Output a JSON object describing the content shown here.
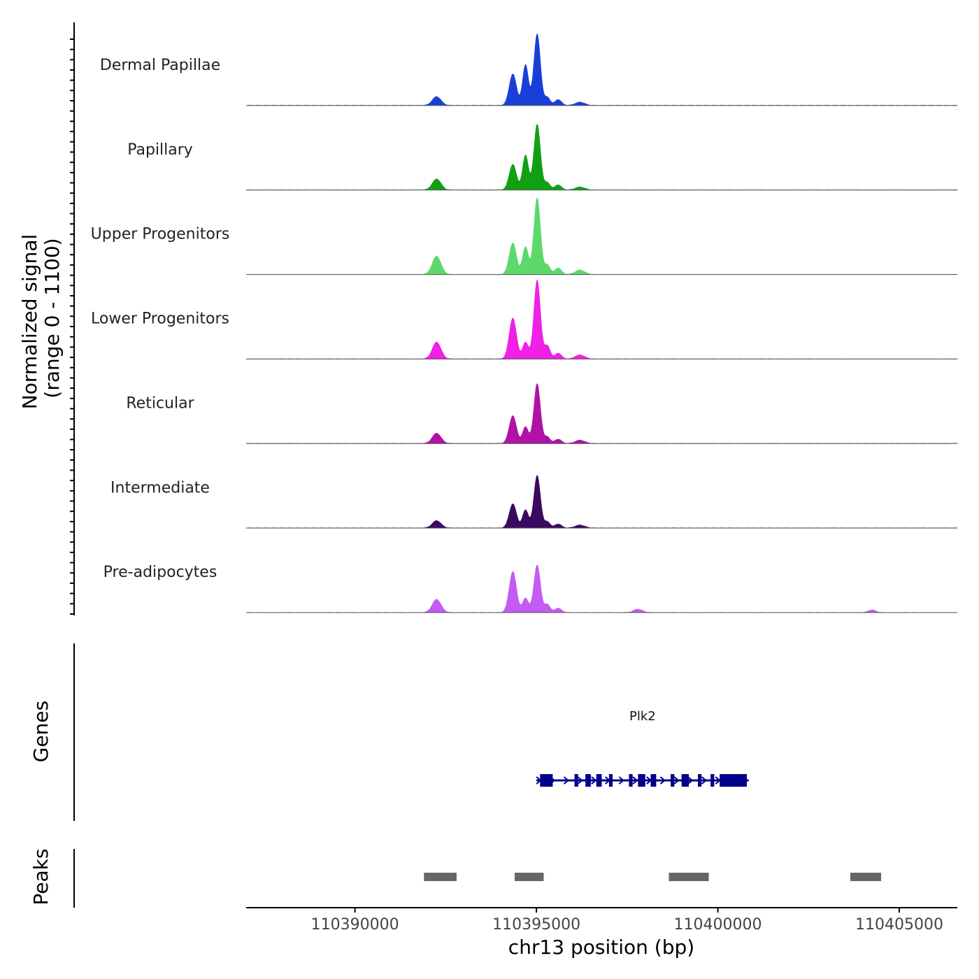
{
  "chart_data": {
    "type": "area",
    "title": "",
    "coverage": {
      "ylabel": "Normalized signal",
      "ylabel_range": "(range 0 - 1100)",
      "ylim": [
        0,
        1100
      ],
      "tracks": [
        {
          "name": "Dermal Papillae",
          "color": "#1a3fd9",
          "peaks": [
            {
              "pos": 110392250,
              "h": 120,
              "w": 120
            },
            {
              "pos": 110394350,
              "h": 430,
              "w": 100
            },
            {
              "pos": 110394700,
              "h": 560,
              "w": 80
            },
            {
              "pos": 110395020,
              "h": 980,
              "w": 90
            },
            {
              "pos": 110395300,
              "h": 110,
              "w": 80
            },
            {
              "pos": 110395600,
              "h": 80,
              "w": 90
            },
            {
              "pos": 110396200,
              "h": 45,
              "w": 130
            }
          ]
        },
        {
          "name": "Papillary",
          "color": "#11a011",
          "peaks": [
            {
              "pos": 110392250,
              "h": 150,
              "w": 120
            },
            {
              "pos": 110394350,
              "h": 350,
              "w": 100
            },
            {
              "pos": 110394700,
              "h": 480,
              "w": 80
            },
            {
              "pos": 110395020,
              "h": 900,
              "w": 90
            },
            {
              "pos": 110395300,
              "h": 100,
              "w": 80
            },
            {
              "pos": 110395600,
              "h": 70,
              "w": 90
            },
            {
              "pos": 110396200,
              "h": 40,
              "w": 130
            }
          ]
        },
        {
          "name": "Upper Progenitors",
          "color": "#5cd96a",
          "peaks": [
            {
              "pos": 110392250,
              "h": 250,
              "w": 120
            },
            {
              "pos": 110394350,
              "h": 430,
              "w": 100
            },
            {
              "pos": 110394700,
              "h": 380,
              "w": 80
            },
            {
              "pos": 110395020,
              "h": 1050,
              "w": 90
            },
            {
              "pos": 110395300,
              "h": 130,
              "w": 80
            },
            {
              "pos": 110395600,
              "h": 90,
              "w": 90
            },
            {
              "pos": 110396200,
              "h": 60,
              "w": 130
            }
          ]
        },
        {
          "name": "Lower Progenitors",
          "color": "#f020e6",
          "peaks": [
            {
              "pos": 110392250,
              "h": 230,
              "w": 120
            },
            {
              "pos": 110394350,
              "h": 560,
              "w": 100
            },
            {
              "pos": 110394700,
              "h": 230,
              "w": 80
            },
            {
              "pos": 110395020,
              "h": 1080,
              "w": 90
            },
            {
              "pos": 110395300,
              "h": 180,
              "w": 80
            },
            {
              "pos": 110395600,
              "h": 80,
              "w": 90
            },
            {
              "pos": 110396200,
              "h": 55,
              "w": 130
            }
          ]
        },
        {
          "name": "Reticular",
          "color": "#b012a8",
          "peaks": [
            {
              "pos": 110392250,
              "h": 140,
              "w": 120
            },
            {
              "pos": 110394350,
              "h": 380,
              "w": 100
            },
            {
              "pos": 110394700,
              "h": 230,
              "w": 80
            },
            {
              "pos": 110395020,
              "h": 820,
              "w": 90
            },
            {
              "pos": 110395300,
              "h": 90,
              "w": 80
            },
            {
              "pos": 110395600,
              "h": 60,
              "w": 90
            },
            {
              "pos": 110396200,
              "h": 45,
              "w": 130
            }
          ]
        },
        {
          "name": "Intermediate",
          "color": "#3a0a5e",
          "peaks": [
            {
              "pos": 110392250,
              "h": 100,
              "w": 120
            },
            {
              "pos": 110394350,
              "h": 330,
              "w": 100
            },
            {
              "pos": 110394700,
              "h": 250,
              "w": 80
            },
            {
              "pos": 110395020,
              "h": 720,
              "w": 90
            },
            {
              "pos": 110395300,
              "h": 85,
              "w": 80
            },
            {
              "pos": 110395600,
              "h": 55,
              "w": 90
            },
            {
              "pos": 110396200,
              "h": 40,
              "w": 130
            }
          ]
        },
        {
          "name": "Pre-adipocytes",
          "color": "#c25cf2",
          "peaks": [
            {
              "pos": 110392250,
              "h": 180,
              "w": 120
            },
            {
              "pos": 110394350,
              "h": 560,
              "w": 100
            },
            {
              "pos": 110394700,
              "h": 200,
              "w": 80
            },
            {
              "pos": 110395020,
              "h": 650,
              "w": 90
            },
            {
              "pos": 110395300,
              "h": 110,
              "w": 80
            },
            {
              "pos": 110395600,
              "h": 60,
              "w": 90
            },
            {
              "pos": 110397800,
              "h": 45,
              "w": 120
            },
            {
              "pos": 110404250,
              "h": 35,
              "w": 100
            }
          ]
        }
      ]
    },
    "genes": {
      "ylabel": "Genes",
      "items": [
        {
          "name": "Plk2",
          "color": "#00008b",
          "strand": "+",
          "start": 110395000,
          "end": 110400850,
          "exons": [
            [
              110395100,
              110395450
            ],
            [
              110396050,
              110396150
            ],
            [
              110396350,
              110396500
            ],
            [
              110396650,
              110396800
            ],
            [
              110397000,
              110397100
            ],
            [
              110397550,
              110397650
            ],
            [
              110397800,
              110398000
            ],
            [
              110398150,
              110398300
            ],
            [
              110398700,
              110398800
            ],
            [
              110399000,
              110399200
            ],
            [
              110399450,
              110399550
            ],
            [
              110399800,
              110399900
            ],
            [
              110400050,
              110400800
            ]
          ]
        }
      ]
    },
    "peaks": {
      "ylabel": "Peaks",
      "color": "#666666",
      "regions": [
        [
          110391900,
          110392800
        ],
        [
          110394400,
          110395200
        ],
        [
          110398650,
          110399750
        ],
        [
          110403650,
          110404500
        ]
      ]
    },
    "x": {
      "label": "chr13 position (bp)",
      "xlim": [
        110387000,
        110406600
      ],
      "ticks": [
        110390000,
        110395000,
        110400000,
        110405000
      ],
      "tick_labels": [
        "110390000",
        "110395000",
        "110400000",
        "110405000"
      ]
    }
  }
}
